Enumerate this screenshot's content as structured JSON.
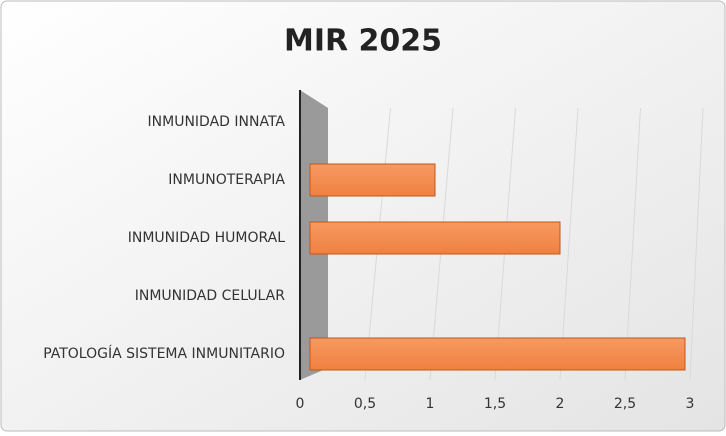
{
  "chart_data": {
    "type": "bar",
    "orientation": "horizontal",
    "title": "MIR 2025",
    "categories": [
      "INMUNIDAD INNATA",
      "INMUNOTERAPIA",
      "INMUNIDAD HUMORAL",
      "INMUNIDAD CELULAR",
      "PATOLOGÍA SISTEMA INMUNITARIO"
    ],
    "values": [
      0,
      1,
      2,
      0,
      3
    ],
    "color": "#f4884a",
    "xlim": [
      0,
      3
    ],
    "xticks": [
      0,
      {
        "value": 0.5,
        "label": "0,5"
      },
      1,
      {
        "value": 1.5,
        "label": "1,5"
      },
      2,
      {
        "value": 2.5,
        "label": "2,5"
      },
      3
    ],
    "grid": true
  }
}
